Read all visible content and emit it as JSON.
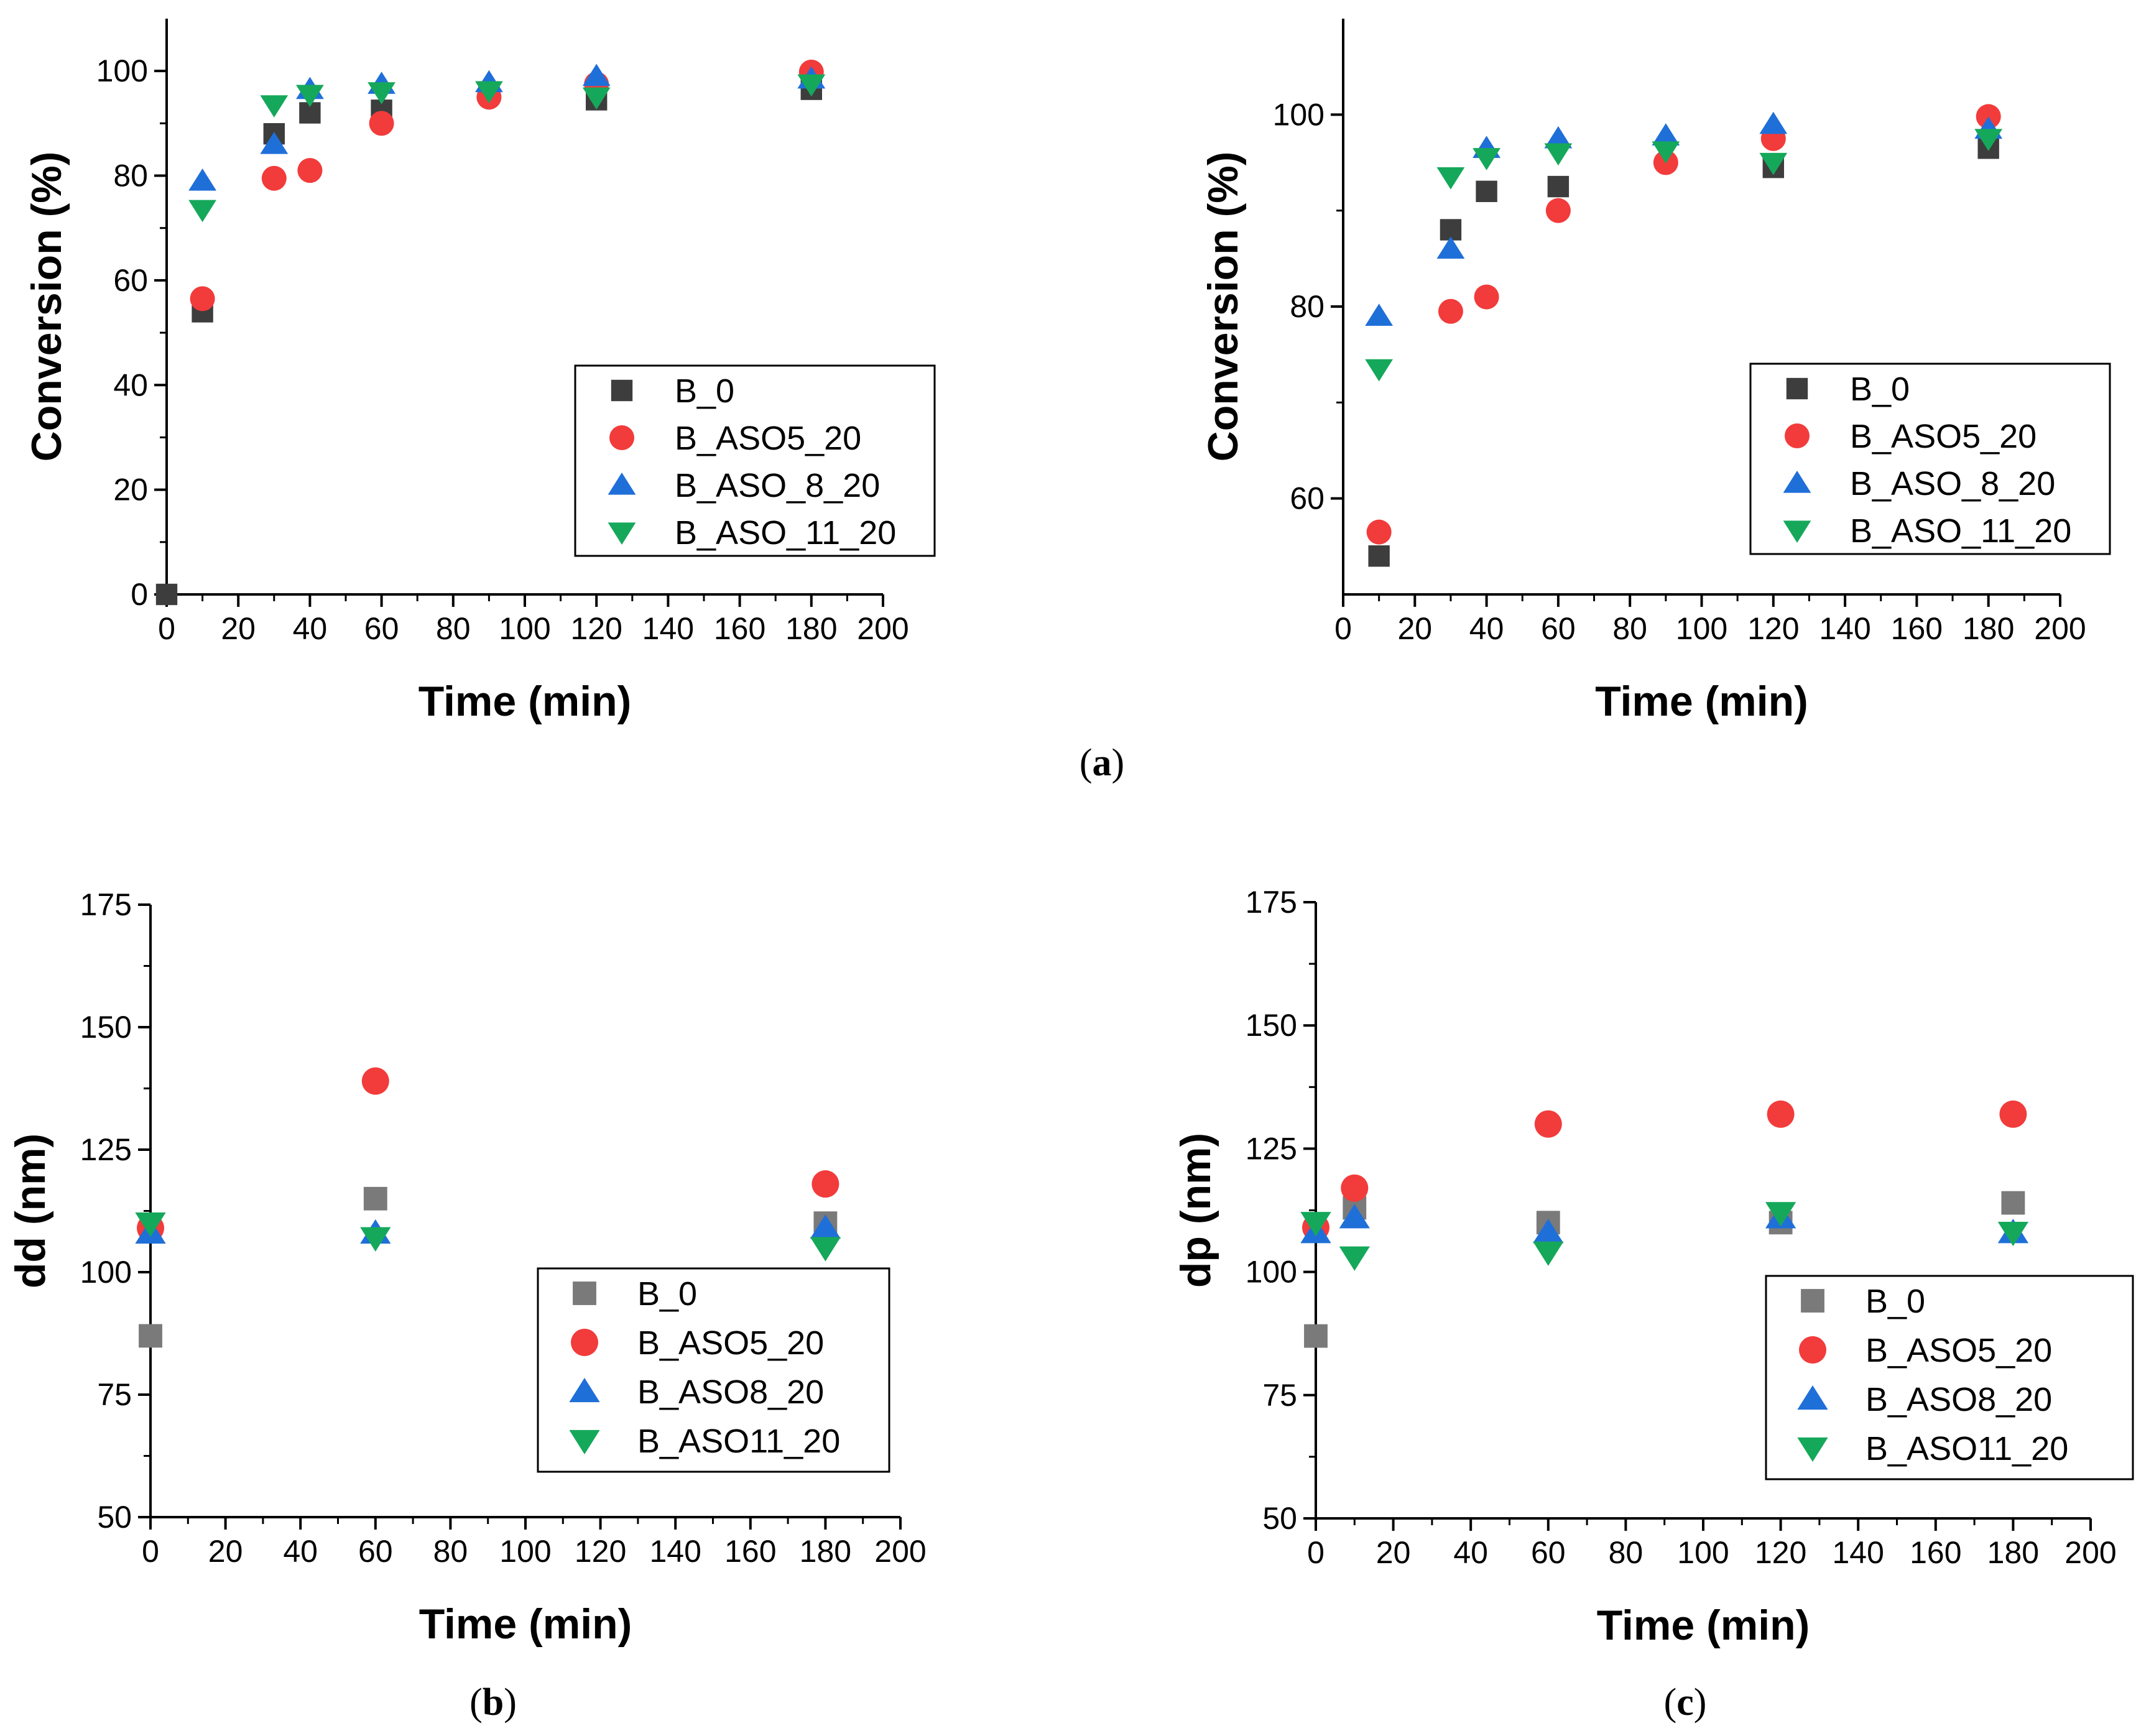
{
  "figure": {
    "panel_labels": {
      "a": [
        "(",
        "a",
        ")"
      ],
      "b": [
        "(",
        "b",
        ")"
      ],
      "c": [
        "(",
        "c",
        ")"
      ]
    }
  },
  "colors": {
    "B_0_dark": "#3d3d3d",
    "B_0_gray": "#7a7a7a",
    "ASO5": "#f23b3b",
    "ASO8": "#1f6fd9",
    "ASO11": "#15a85b"
  },
  "chart_data": [
    {
      "id": "a_left",
      "type": "scatter",
      "title": "",
      "xlabel": "Time (min)",
      "ylabel": "Conversion (%)",
      "xlim": [
        0,
        200
      ],
      "ylim": [
        0,
        110
      ],
      "xticks": [
        "0",
        "20",
        "40",
        "60",
        "80",
        "100",
        "120",
        "140",
        "160",
        "180",
        "200"
      ],
      "yticks": [
        "0",
        "20",
        "40",
        "60",
        "80",
        "100"
      ],
      "legend_position": "right",
      "series": [
        {
          "name": "B_0",
          "marker": "square",
          "color_key": "B_0_dark",
          "x": [
            0,
            10,
            30,
            40,
            60,
            90,
            120,
            180
          ],
          "y": [
            0,
            54,
            88,
            92,
            92.5,
            96,
            94.5,
            96.5
          ]
        },
        {
          "name": "B_ASO5_20",
          "marker": "circle",
          "color_key": "ASO5",
          "x": [
            10,
            30,
            40,
            60,
            90,
            120,
            180
          ],
          "y": [
            56.5,
            79.5,
            81,
            90,
            95,
            97.5,
            99.8
          ]
        },
        {
          "name": "B_ASO_8_20",
          "marker": "triangle-up",
          "color_key": "ASO8",
          "x": [
            10,
            30,
            40,
            60,
            90,
            120,
            180
          ],
          "y": [
            79,
            86,
            96.5,
            97.5,
            97.8,
            99,
            98.5
          ]
        },
        {
          "name": "B_ASO_11_20",
          "marker": "triangle-down",
          "color_key": "ASO11",
          "x": [
            10,
            30,
            40,
            60,
            90,
            120,
            180
          ],
          "y": [
            73.5,
            93.5,
            95.5,
            96,
            96.2,
            95,
            97.5
          ]
        }
      ]
    },
    {
      "id": "a_right",
      "type": "scatter",
      "title": "",
      "xlabel": "Time (min)",
      "ylabel": "Conversion (%)",
      "xlim": [
        0,
        200
      ],
      "ylim": [
        50,
        110
      ],
      "xticks": [
        "0",
        "20",
        "40",
        "60",
        "80",
        "100",
        "120",
        "140",
        "160",
        "180",
        "200"
      ],
      "yticks": [
        "60",
        "80",
        "100"
      ],
      "legend_position": "right",
      "series": [
        {
          "name": "B_0",
          "marker": "square",
          "color_key": "B_0_dark",
          "x": [
            10,
            30,
            40,
            60,
            120,
            180
          ],
          "y": [
            54,
            88,
            92,
            92.5,
            94.5,
            96.5
          ]
        },
        {
          "name": "B_ASO5_20",
          "marker": "circle",
          "color_key": "ASO5",
          "x": [
            10,
            30,
            40,
            60,
            90,
            120,
            180
          ],
          "y": [
            56.5,
            79.5,
            81,
            90,
            95,
            97.5,
            99.8
          ]
        },
        {
          "name": "B_ASO_8_20",
          "marker": "triangle-up",
          "color_key": "ASO8",
          "x": [
            10,
            30,
            40,
            60,
            90,
            120,
            180
          ],
          "y": [
            79,
            86,
            96.5,
            97.5,
            97.8,
            99,
            98.5
          ]
        },
        {
          "name": "B_ASO_11_20",
          "marker": "triangle-down",
          "color_key": "ASO11",
          "x": [
            10,
            30,
            40,
            60,
            90,
            120,
            180
          ],
          "y": [
            73.5,
            93.5,
            95.5,
            96,
            96.2,
            95,
            97.5
          ]
        }
      ]
    },
    {
      "id": "b",
      "type": "scatter",
      "title": "",
      "xlabel": "Time (min)",
      "ylabel": "dd (nm)",
      "xlim": [
        0,
        200
      ],
      "ylim": [
        50,
        175
      ],
      "xticks": [
        "0",
        "20",
        "40",
        "60",
        "80",
        "100",
        "120",
        "140",
        "160",
        "180",
        "200"
      ],
      "yticks": [
        "50",
        "75",
        "100",
        "125",
        "150",
        "175"
      ],
      "legend_position": "bottom-right",
      "series": [
        {
          "name": "B_0",
          "marker": "square",
          "color_key": "B_0_gray",
          "x": [
            0,
            60,
            180
          ],
          "y": [
            87,
            115,
            110
          ]
        },
        {
          "name": "B_ASO5_20",
          "marker": "circle",
          "color_key": "ASO5",
          "x": [
            0,
            60,
            180
          ],
          "y": [
            109,
            139,
            118
          ]
        },
        {
          "name": "B_ASO8_20",
          "marker": "triangle-up",
          "color_key": "ASO8",
          "x": [
            0,
            60,
            180
          ],
          "y": [
            108,
            108,
            109
          ]
        },
        {
          "name": "B_ASO11_20",
          "marker": "triangle-down",
          "color_key": "ASO11",
          "x": [
            0,
            60,
            180
          ],
          "y": [
            110,
            107,
            105
          ]
        }
      ]
    },
    {
      "id": "c",
      "type": "scatter",
      "title": "",
      "xlabel": "Time (min)",
      "ylabel": "dp (nm)",
      "xlim": [
        0,
        200
      ],
      "ylim": [
        50,
        175
      ],
      "xticks": [
        "0",
        "20",
        "40",
        "60",
        "80",
        "100",
        "120",
        "140",
        "160",
        "180",
        "200"
      ],
      "yticks": [
        "50",
        "75",
        "100",
        "125",
        "150",
        "175"
      ],
      "legend_position": "bottom-right",
      "series": [
        {
          "name": "B_0",
          "marker": "square",
          "color_key": "B_0_gray",
          "x": [
            0,
            10,
            60,
            120,
            180
          ],
          "y": [
            87,
            113,
            110,
            110,
            114
          ]
        },
        {
          "name": "B_ASO5_20",
          "marker": "circle",
          "color_key": "ASO5",
          "x": [
            0,
            10,
            60,
            120,
            180
          ],
          "y": [
            109,
            117,
            130,
            132,
            132
          ]
        },
        {
          "name": "B_ASO8_20",
          "marker": "triangle-up",
          "color_key": "ASO8",
          "x": [
            0,
            10,
            60,
            120,
            180
          ],
          "y": [
            108,
            111,
            108,
            111,
            108
          ]
        },
        {
          "name": "B_ASO11_20",
          "marker": "triangle-down",
          "color_key": "ASO11",
          "x": [
            0,
            10,
            60,
            120,
            180
          ],
          "y": [
            110,
            103,
            104,
            112,
            108
          ]
        }
      ]
    }
  ]
}
